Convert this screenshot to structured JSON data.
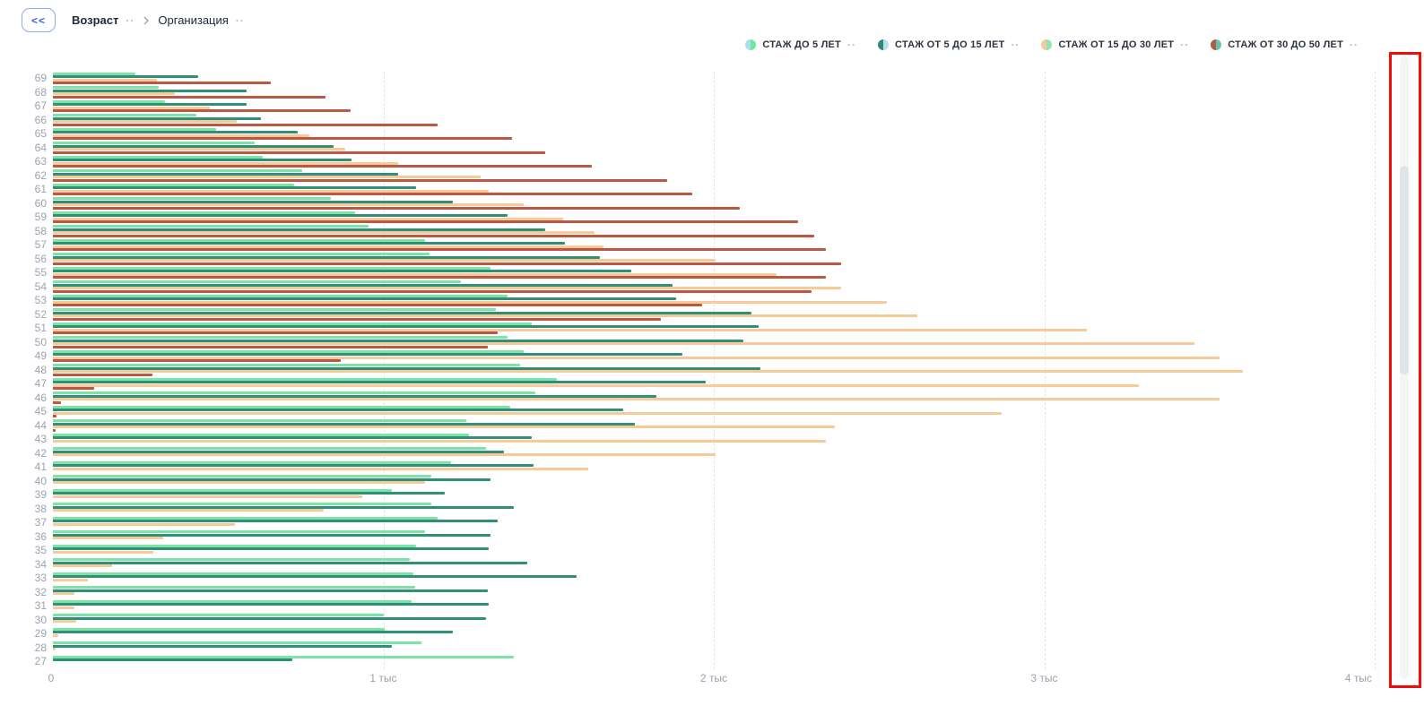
{
  "header": {
    "collapse_button_label": "<<",
    "breadcrumbs": [
      {
        "label": "Возраст",
        "bold": true
      },
      {
        "label": "Организация",
        "bold": false
      }
    ],
    "menu_dots": "··"
  },
  "legend": {
    "items": [
      {
        "label": "СТАЖ ДО 5 ЛЕТ",
        "color_left": "#a9def2",
        "color_right": "#71e6a2"
      },
      {
        "label": "СТАЖ ОТ 5 ДО 15 ЛЕТ",
        "color_left": "#2f8c74",
        "color_right": "#b9ddf8"
      },
      {
        "label": "СТАЖ ОТ 15 ДО 30 ЛЕТ",
        "color_left": "#f6c997",
        "color_right": "#8ce7b0"
      },
      {
        "label": "СТАЖ ОТ 30 ДО 50 ЛЕТ",
        "color_left": "#b15b46",
        "color_right": "#63c5a6"
      }
    ],
    "menu_dots": "··"
  },
  "colors": {
    "accent_blue": "#3b63d8",
    "annotation_red": "#f40b0b",
    "gridline": "#e2e4e8",
    "axis_text": "#98a0ad"
  },
  "chart_data": {
    "type": "bar",
    "orientation": "horizontal",
    "ylabel": "Возраст",
    "xlabel": "",
    "x_ticks": [
      "0",
      "1 тыс",
      "2 тыс",
      "3 тыс",
      "4 тыс"
    ],
    "xlim": [
      0,
      4000
    ],
    "grid": "dashed-vertical",
    "legend_position": "top-right",
    "categories": [
      69,
      68,
      67,
      66,
      65,
      64,
      63,
      62,
      61,
      60,
      59,
      58,
      57,
      56,
      55,
      54,
      53,
      52,
      51,
      50,
      49,
      48,
      47,
      46,
      45,
      44,
      43,
      42,
      41,
      40,
      39,
      38,
      37,
      36,
      35,
      34,
      33,
      32,
      31,
      30,
      29,
      28,
      27
    ],
    "series": [
      {
        "name": "СТАЖ ДО 5 ЛЕТ",
        "color": "#7ee3a7",
        "values": [
          250,
          320,
          340,
          435,
          495,
          610,
          635,
          755,
          730,
          840,
          915,
          955,
          1125,
          1140,
          1325,
          1235,
          1375,
          1340,
          1450,
          1375,
          1425,
          1415,
          1525,
          1460,
          1385,
          1250,
          1260,
          1310,
          1205,
          1145,
          1025,
          1145,
          1165,
          1125,
          1100,
          1080,
          1090,
          1095,
          1085,
          1000,
          1005,
          1115,
          1395
        ]
      },
      {
        "name": "СТАЖ ОТ 5 ДО 15 ЛЕТ",
        "color": "#2f9077",
        "values": [
          440,
          585,
          585,
          630,
          740,
          850,
          905,
          1045,
          1100,
          1210,
          1375,
          1490,
          1550,
          1655,
          1750,
          1875,
          1885,
          2115,
          2135,
          2090,
          1905,
          2140,
          1975,
          1825,
          1725,
          1760,
          1450,
          1365,
          1455,
          1325,
          1185,
          1395,
          1345,
          1325,
          1320,
          1435,
          1585,
          1315,
          1320,
          1310,
          1210,
          1025,
          725
        ]
      },
      {
        "name": "СТАЖ ОТ 15 ДО 30 ЛЕТ",
        "color": "#f7ca9a",
        "values": [
          315,
          370,
          475,
          555,
          775,
          885,
          1045,
          1295,
          1320,
          1425,
          1545,
          1640,
          1665,
          2005,
          2190,
          2385,
          2525,
          2615,
          3130,
          3455,
          3530,
          3600,
          3285,
          3530,
          2870,
          2365,
          2340,
          2005,
          1620,
          1125,
          935,
          820,
          550,
          335,
          305,
          180,
          105,
          65,
          65,
          70,
          15,
          8,
          0
        ]
      },
      {
        "name": "СТАЖ ОТ 30 ДО 50 ЛЕТ",
        "color": "#bd5742",
        "values": [
          660,
          825,
          900,
          1165,
          1390,
          1490,
          1630,
          1860,
          1935,
          2080,
          2255,
          2305,
          2340,
          2385,
          2340,
          2295,
          1965,
          1840,
          1345,
          1315,
          870,
          300,
          125,
          25,
          12,
          8,
          0,
          0,
          0,
          0,
          0,
          0,
          0,
          0,
          0,
          0,
          0,
          0,
          0,
          0,
          0,
          0,
          0
        ]
      }
    ]
  }
}
